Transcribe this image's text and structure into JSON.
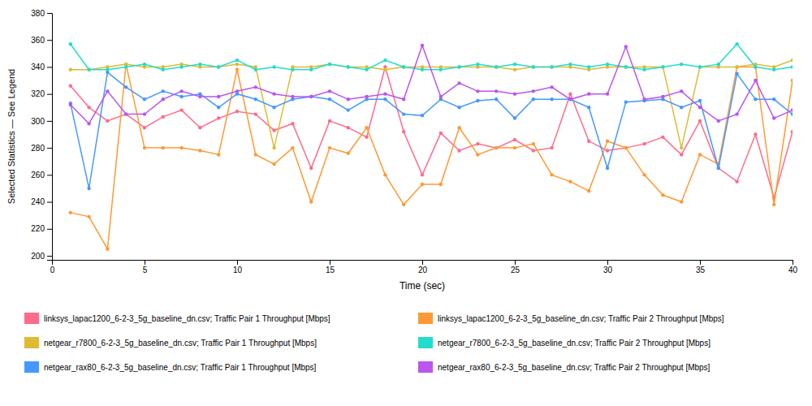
{
  "chart_data": {
    "type": "line",
    "xlabel": "Time (sec)",
    "ylabel": "Selected Statistics — See Legend",
    "xlim": [
      0,
      40
    ],
    "ylim": [
      197,
      380
    ],
    "xticks": [
      0,
      5,
      10,
      15,
      20,
      25,
      30,
      35,
      40
    ],
    "yticks": [
      200,
      220,
      240,
      260,
      280,
      300,
      320,
      340,
      360,
      380
    ],
    "grid": false,
    "legend": "bottom",
    "marker": "circle",
    "x": [
      1,
      2,
      3,
      4,
      5,
      6,
      7,
      8,
      9,
      10,
      11,
      12,
      13,
      14,
      15,
      16,
      17,
      18,
      19,
      20,
      21,
      22,
      23,
      24,
      25,
      26,
      27,
      28,
      29,
      30,
      31,
      32,
      33,
      34,
      35,
      36,
      37,
      38,
      39,
      40
    ],
    "series": [
      {
        "name": "linksys_lapac1200_6-2-3_5g_baseline_dn.csv; Traffic Pair 1 Throughput [Mbps]",
        "color": "#ff6b8a",
        "values": [
          326,
          310,
          300,
          305,
          295,
          303,
          308,
          295,
          302,
          307,
          305,
          293,
          298,
          265,
          300,
          295,
          288,
          340,
          292,
          260,
          291,
          278,
          283,
          280,
          286,
          278,
          280,
          320,
          285,
          278,
          280,
          283,
          288,
          275,
          300,
          265,
          255,
          290,
          243,
          292
        ]
      },
      {
        "name": "linksys_lapac1200_6-2-3_5g_baseline_dn.csv; Traffic Pair 2 Throughput [Mbps]",
        "color": "#ff9933",
        "values": [
          232,
          229,
          205,
          342,
          280,
          280,
          280,
          278,
          275,
          338,
          275,
          268,
          280,
          240,
          280,
          276,
          295,
          260,
          238,
          253,
          253,
          295,
          275,
          280,
          280,
          283,
          260,
          255,
          248,
          285,
          280,
          260,
          245,
          240,
          275,
          268,
          340,
          340,
          238,
          330
        ]
      },
      {
        "name": "netgear_r7800_6-2-3_5g_baseline_dn.csv; Traffic Pair 1 Throughput [Mbps]",
        "color": "#ddbb33",
        "values": [
          338,
          338,
          340,
          342,
          340,
          340,
          342,
          340,
          340,
          342,
          340,
          280,
          340,
          340,
          342,
          340,
          340,
          338,
          340,
          340,
          340,
          340,
          340,
          340,
          338,
          340,
          340,
          340,
          338,
          340,
          340,
          340,
          340,
          280,
          340,
          340,
          340,
          342,
          340,
          345
        ]
      },
      {
        "name": "netgear_r7800_6-2-3_5g_baseline_dn.csv; Traffic Pair 2 Throughput [Mbps]",
        "color": "#22ddcc",
        "values": [
          357,
          338,
          338,
          340,
          342,
          338,
          340,
          342,
          340,
          345,
          338,
          340,
          338,
          338,
          342,
          340,
          338,
          345,
          340,
          338,
          338,
          340,
          342,
          340,
          342,
          340,
          340,
          342,
          340,
          342,
          340,
          338,
          340,
          342,
          340,
          342,
          357,
          340,
          338,
          340
        ]
      },
      {
        "name": "netgear_rax80_6-2-3_5g_baseline_dn.csv; Traffic Pair 1 Throughput [Mbps]",
        "color": "#4499ff",
        "values": [
          313,
          250,
          336,
          325,
          316,
          322,
          318,
          320,
          310,
          320,
          316,
          310,
          316,
          318,
          316,
          308,
          316,
          316,
          305,
          304,
          316,
          310,
          315,
          316,
          302,
          316,
          316,
          316,
          310,
          265,
          314,
          315,
          316,
          310,
          315,
          265,
          335,
          316,
          316,
          305
        ]
      },
      {
        "name": "netgear_rax80_6-2-3_5g_baseline_dn.csv; Traffic Pair 2 Throughput [Mbps]",
        "color": "#bb55ee",
        "values": [
          312,
          298,
          322,
          305,
          305,
          316,
          322,
          318,
          318,
          322,
          325,
          320,
          318,
          318,
          322,
          316,
          318,
          320,
          316,
          356,
          318,
          328,
          322,
          322,
          320,
          322,
          325,
          316,
          320,
          320,
          355,
          316,
          318,
          322,
          310,
          300,
          305,
          330,
          302,
          308
        ]
      }
    ]
  }
}
